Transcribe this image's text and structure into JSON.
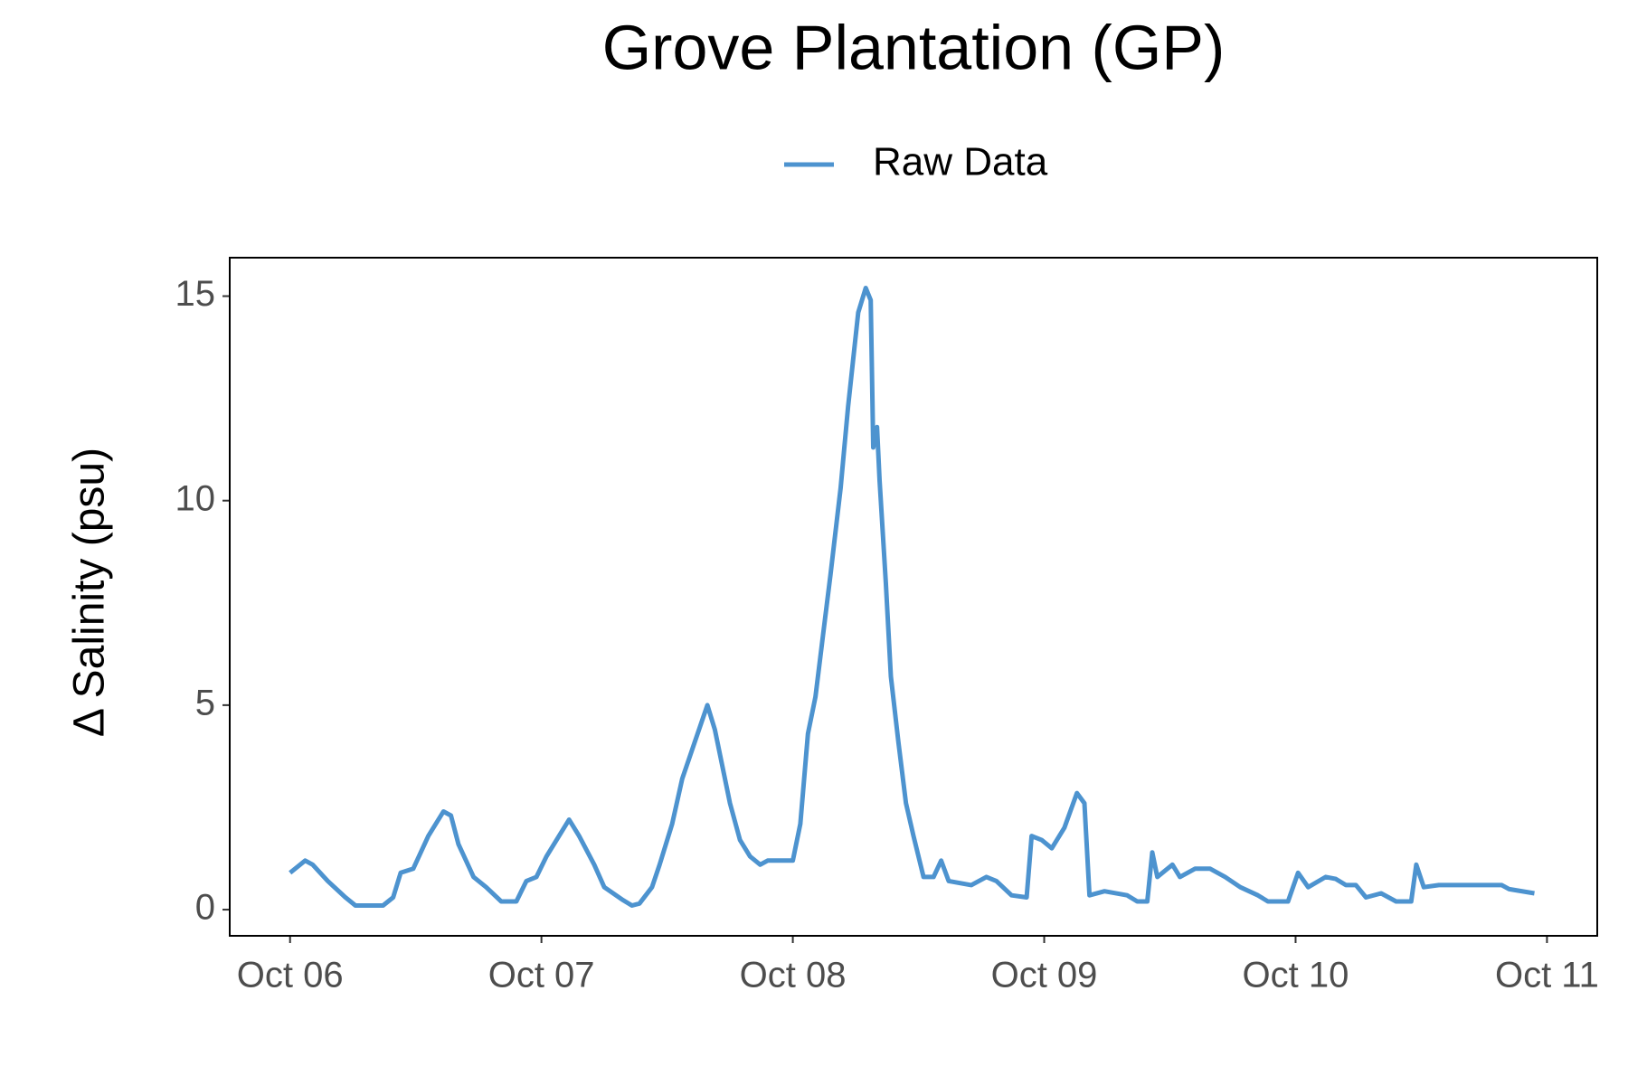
{
  "chart_data": {
    "type": "line",
    "title": "Grove Plantation (GP)",
    "y_label": "Δ Salinity (psu)",
    "series": [
      {
        "name": "Raw Data",
        "color": "#4d93cf",
        "x": [
          0,
          0.06,
          0.09,
          0.15,
          0.22,
          0.26,
          0.37,
          0.41,
          0.44,
          0.49,
          0.55,
          0.61,
          0.64,
          0.67,
          0.73,
          0.78,
          0.84,
          0.9,
          0.94,
          0.98,
          1.02,
          1.07,
          1.11,
          1.15,
          1.21,
          1.25,
          1.32,
          1.36,
          1.39,
          1.44,
          1.47,
          1.52,
          1.56,
          1.61,
          1.66,
          1.69,
          1.75,
          1.79,
          1.83,
          1.87,
          1.9,
          2.0,
          2.03,
          2.06,
          2.09,
          2.12,
          2.15,
          2.19,
          2.22,
          2.26,
          2.29,
          2.31,
          2.32,
          2.335,
          2.345,
          2.37,
          2.39,
          2.42,
          2.45,
          2.48,
          2.52,
          2.56,
          2.59,
          2.62,
          2.71,
          2.77,
          2.81,
          2.87,
          2.93,
          2.95,
          2.99,
          3.03,
          3.08,
          3.13,
          3.16,
          3.18,
          3.24,
          3.33,
          3.37,
          3.41,
          3.43,
          3.45,
          3.51,
          3.54,
          3.6,
          3.66,
          3.72,
          3.78,
          3.85,
          3.89,
          3.97,
          4.01,
          4.05,
          4.12,
          4.16,
          4.2,
          4.24,
          4.28,
          4.34,
          4.4,
          4.46,
          4.48,
          4.51,
          4.57,
          4.82,
          4.85,
          4.95
        ],
        "values": [
          0.9,
          1.2,
          1.1,
          0.7,
          0.3,
          0.1,
          0.1,
          0.3,
          0.9,
          1.0,
          1.8,
          2.4,
          2.3,
          1.6,
          0.8,
          0.55,
          0.2,
          0.2,
          0.7,
          0.8,
          1.3,
          1.8,
          2.2,
          1.8,
          1.1,
          0.55,
          0.25,
          0.1,
          0.15,
          0.55,
          1.1,
          2.1,
          3.2,
          4.1,
          5.0,
          4.4,
          2.6,
          1.7,
          1.3,
          1.1,
          1.2,
          1.2,
          2.1,
          4.3,
          5.2,
          6.7,
          8.2,
          10.3,
          12.3,
          14.6,
          15.2,
          14.9,
          11.3,
          11.8,
          10.5,
          8.0,
          5.7,
          4.1,
          2.6,
          1.8,
          0.8,
          0.8,
          1.2,
          0.7,
          0.6,
          0.8,
          0.7,
          0.35,
          0.3,
          1.8,
          1.7,
          1.5,
          2.0,
          2.85,
          2.6,
          0.35,
          0.45,
          0.35,
          0.2,
          0.2,
          1.4,
          0.8,
          1.1,
          0.8,
          1.0,
          1.0,
          0.8,
          0.55,
          0.35,
          0.2,
          0.2,
          0.9,
          0.55,
          0.8,
          0.75,
          0.6,
          0.6,
          0.3,
          0.4,
          0.2,
          0.2,
          1.1,
          0.55,
          0.6,
          0.6,
          0.5,
          0.4
        ]
      }
    ],
    "xlim": [
      -0.24,
      5.2
    ],
    "xticks": [
      {
        "value": 0,
        "label": "Oct 06"
      },
      {
        "value": 1,
        "label": "Oct 07"
      },
      {
        "value": 2,
        "label": "Oct 08"
      },
      {
        "value": 3,
        "label": "Oct 09"
      },
      {
        "value": 4,
        "label": "Oct 10"
      },
      {
        "value": 5,
        "label": "Oct 11"
      }
    ],
    "ylim": [
      -0.64,
      15.94
    ],
    "yticks": [
      0,
      5,
      10,
      15
    ],
    "grid": false,
    "legend": "top"
  }
}
